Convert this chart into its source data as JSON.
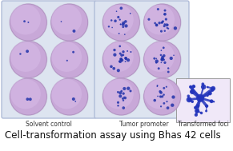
{
  "background_color": "#ffffff",
  "title": "Cell-transformation assay using Bhas 42 cells",
  "title_fontsize": 8.5,
  "label_solvent": "Solvent control",
  "label_tumor": "Tumor promoter",
  "label_foci": "Transformed foci",
  "label_fontsize": 5.5,
  "tray_fill": "#dde4f0",
  "tray_edge": "#b0bcd8",
  "well_fill": "#c8a8d8",
  "well_edge": "#e8d0f0",
  "well_edge2": "#b090c0",
  "well_inner": "#d8bce8",
  "spot_color": "#2233aa",
  "foci_bg": "#f0e8f8",
  "foci_color": "#2233bb",
  "label_color": "#333333"
}
